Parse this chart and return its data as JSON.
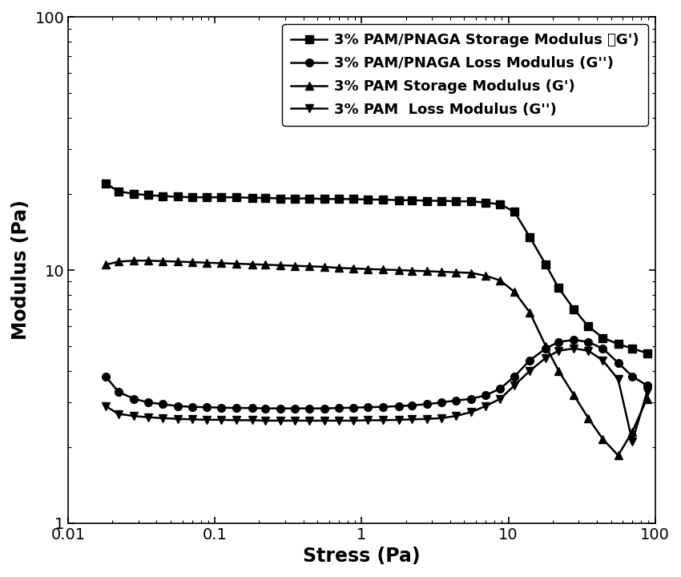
{
  "series": [
    {
      "label": "3% PAM/PNAGA Storage Modulus （G')",
      "marker": "s",
      "x": [
        0.018,
        0.022,
        0.028,
        0.035,
        0.044,
        0.056,
        0.07,
        0.088,
        0.11,
        0.14,
        0.18,
        0.22,
        0.28,
        0.35,
        0.44,
        0.56,
        0.7,
        0.88,
        1.1,
        1.4,
        1.8,
        2.2,
        2.8,
        3.5,
        4.4,
        5.6,
        7.0,
        8.8,
        11,
        14,
        18,
        22,
        28,
        35,
        44,
        56,
        70,
        88
      ],
      "y": [
        22.0,
        20.5,
        20.0,
        19.8,
        19.6,
        19.5,
        19.4,
        19.4,
        19.4,
        19.4,
        19.3,
        19.3,
        19.2,
        19.2,
        19.2,
        19.1,
        19.1,
        19.1,
        19.0,
        19.0,
        18.9,
        18.9,
        18.8,
        18.8,
        18.7,
        18.7,
        18.5,
        18.2,
        17.0,
        13.5,
        10.5,
        8.5,
        7.0,
        6.0,
        5.4,
        5.1,
        4.9,
        4.7
      ]
    },
    {
      "label": "3% PAM/PNAGA Loss Modulus (G'')",
      "marker": "o",
      "x": [
        0.018,
        0.022,
        0.028,
        0.035,
        0.044,
        0.056,
        0.07,
        0.088,
        0.11,
        0.14,
        0.18,
        0.22,
        0.28,
        0.35,
        0.44,
        0.56,
        0.7,
        0.88,
        1.1,
        1.4,
        1.8,
        2.2,
        2.8,
        3.5,
        4.4,
        5.6,
        7.0,
        8.8,
        11,
        14,
        18,
        22,
        28,
        35,
        44,
        56,
        70,
        88
      ],
      "y": [
        3.8,
        3.3,
        3.1,
        3.0,
        2.95,
        2.9,
        2.88,
        2.87,
        2.86,
        2.85,
        2.85,
        2.84,
        2.84,
        2.84,
        2.84,
        2.84,
        2.85,
        2.86,
        2.87,
        2.88,
        2.9,
        2.92,
        2.95,
        3.0,
        3.05,
        3.1,
        3.2,
        3.4,
        3.8,
        4.4,
        4.9,
        5.2,
        5.3,
        5.2,
        4.9,
        4.3,
        3.8,
        3.5
      ]
    },
    {
      "label": "3% PAM Storage Modulus (G')",
      "marker": "^",
      "x": [
        0.018,
        0.022,
        0.028,
        0.035,
        0.044,
        0.056,
        0.07,
        0.088,
        0.11,
        0.14,
        0.18,
        0.22,
        0.28,
        0.35,
        0.44,
        0.56,
        0.7,
        0.88,
        1.1,
        1.4,
        1.8,
        2.2,
        2.8,
        3.5,
        4.4,
        5.6,
        7.0,
        8.8,
        11,
        14,
        18,
        22,
        28,
        35,
        44,
        56,
        70,
        88
      ],
      "y": [
        10.5,
        10.8,
        10.9,
        10.9,
        10.85,
        10.8,
        10.75,
        10.7,
        10.65,
        10.6,
        10.55,
        10.5,
        10.45,
        10.4,
        10.35,
        10.3,
        10.2,
        10.15,
        10.1,
        10.05,
        10.0,
        9.95,
        9.9,
        9.85,
        9.8,
        9.75,
        9.5,
        9.1,
        8.2,
        6.8,
        5.0,
        4.0,
        3.2,
        2.6,
        2.15,
        1.85,
        2.3,
        3.1
      ]
    },
    {
      "label": "3% PAM  Loss Modulus (G'')",
      "marker": "v",
      "x": [
        0.018,
        0.022,
        0.028,
        0.035,
        0.044,
        0.056,
        0.07,
        0.088,
        0.11,
        0.14,
        0.18,
        0.22,
        0.28,
        0.35,
        0.44,
        0.56,
        0.7,
        0.88,
        1.1,
        1.4,
        1.8,
        2.2,
        2.8,
        3.5,
        4.4,
        5.6,
        7.0,
        8.8,
        11,
        14,
        18,
        22,
        28,
        35,
        44,
        56,
        70,
        88
      ],
      "y": [
        2.9,
        2.7,
        2.65,
        2.62,
        2.6,
        2.58,
        2.57,
        2.56,
        2.56,
        2.55,
        2.55,
        2.54,
        2.54,
        2.54,
        2.54,
        2.54,
        2.54,
        2.54,
        2.55,
        2.55,
        2.56,
        2.57,
        2.58,
        2.6,
        2.65,
        2.75,
        2.9,
        3.1,
        3.5,
        4.0,
        4.5,
        4.8,
        4.9,
        4.8,
        4.4,
        3.7,
        2.1,
        3.3
      ]
    }
  ],
  "xlabel": "Stress (Pa)",
  "ylabel": "Modulus (Pa)",
  "xlim": [
    0.01,
    100
  ],
  "ylim": [
    1,
    100
  ],
  "color": "#000000",
  "linewidth": 1.8,
  "markersize": 7,
  "legend_fontsize": 13,
  "axis_label_fontsize": 17,
  "tick_fontsize": 14,
  "figure_width": 8.5,
  "figure_height": 7.2,
  "dpi": 100
}
